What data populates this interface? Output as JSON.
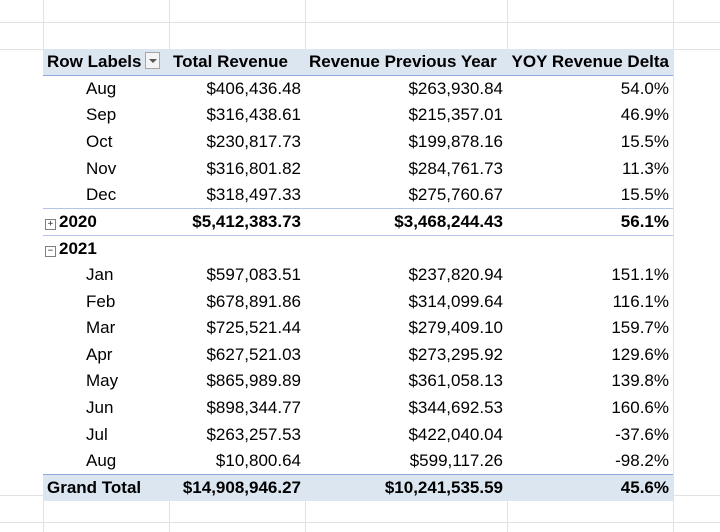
{
  "header": {
    "row_labels": "Row Labels",
    "total_revenue": "Total Revenue",
    "revenue_prev": "Revenue Previous Year",
    "yoy_delta": "YOY Revenue Delta"
  },
  "rows_2020": [
    {
      "label": "Aug",
      "total": "$406,436.48",
      "prev": "$263,930.84",
      "yoy": "54.0%"
    },
    {
      "label": "Sep",
      "total": "$316,438.61",
      "prev": "$215,357.01",
      "yoy": "46.9%"
    },
    {
      "label": "Oct",
      "total": "$230,817.73",
      "prev": "$199,878.16",
      "yoy": "15.5%"
    },
    {
      "label": "Nov",
      "total": "$316,801.82",
      "prev": "$284,761.73",
      "yoy": "11.3%"
    },
    {
      "label": "Dec",
      "total": "$318,497.33",
      "prev": "$275,760.67",
      "yoy": "15.5%"
    }
  ],
  "year_2020": {
    "toggle": "+",
    "label": "2020",
    "total": "$5,412,383.73",
    "prev": "$3,468,244.43",
    "yoy": "56.1%"
  },
  "year_2021": {
    "toggle": "−",
    "label": "2021"
  },
  "rows_2021": [
    {
      "label": "Jan",
      "total": "$597,083.51",
      "prev": "$237,820.94",
      "yoy": "151.1%"
    },
    {
      "label": "Feb",
      "total": "$678,891.86",
      "prev": "$314,099.64",
      "yoy": "116.1%"
    },
    {
      "label": "Mar",
      "total": "$725,521.44",
      "prev": "$279,409.10",
      "yoy": "159.7%"
    },
    {
      "label": "Apr",
      "total": "$627,521.03",
      "prev": "$273,295.92",
      "yoy": "129.6%"
    },
    {
      "label": "May",
      "total": "$865,989.89",
      "prev": "$361,058.13",
      "yoy": "139.8%"
    },
    {
      "label": "Jun",
      "total": "$898,344.77",
      "prev": "$344,692.53",
      "yoy": "160.6%"
    },
    {
      "label": "Jul",
      "total": "$263,257.53",
      "prev": "$422,040.04",
      "yoy": "-37.6%"
    },
    {
      "label": "Aug",
      "total": "$10,800.64",
      "prev": "$599,117.26",
      "yoy": "-98.2%"
    }
  ],
  "grand_total": {
    "label": "Grand Total",
    "total": "$14,908,946.27",
    "prev": "$10,241,535.59",
    "yoy": "45.6%"
  }
}
